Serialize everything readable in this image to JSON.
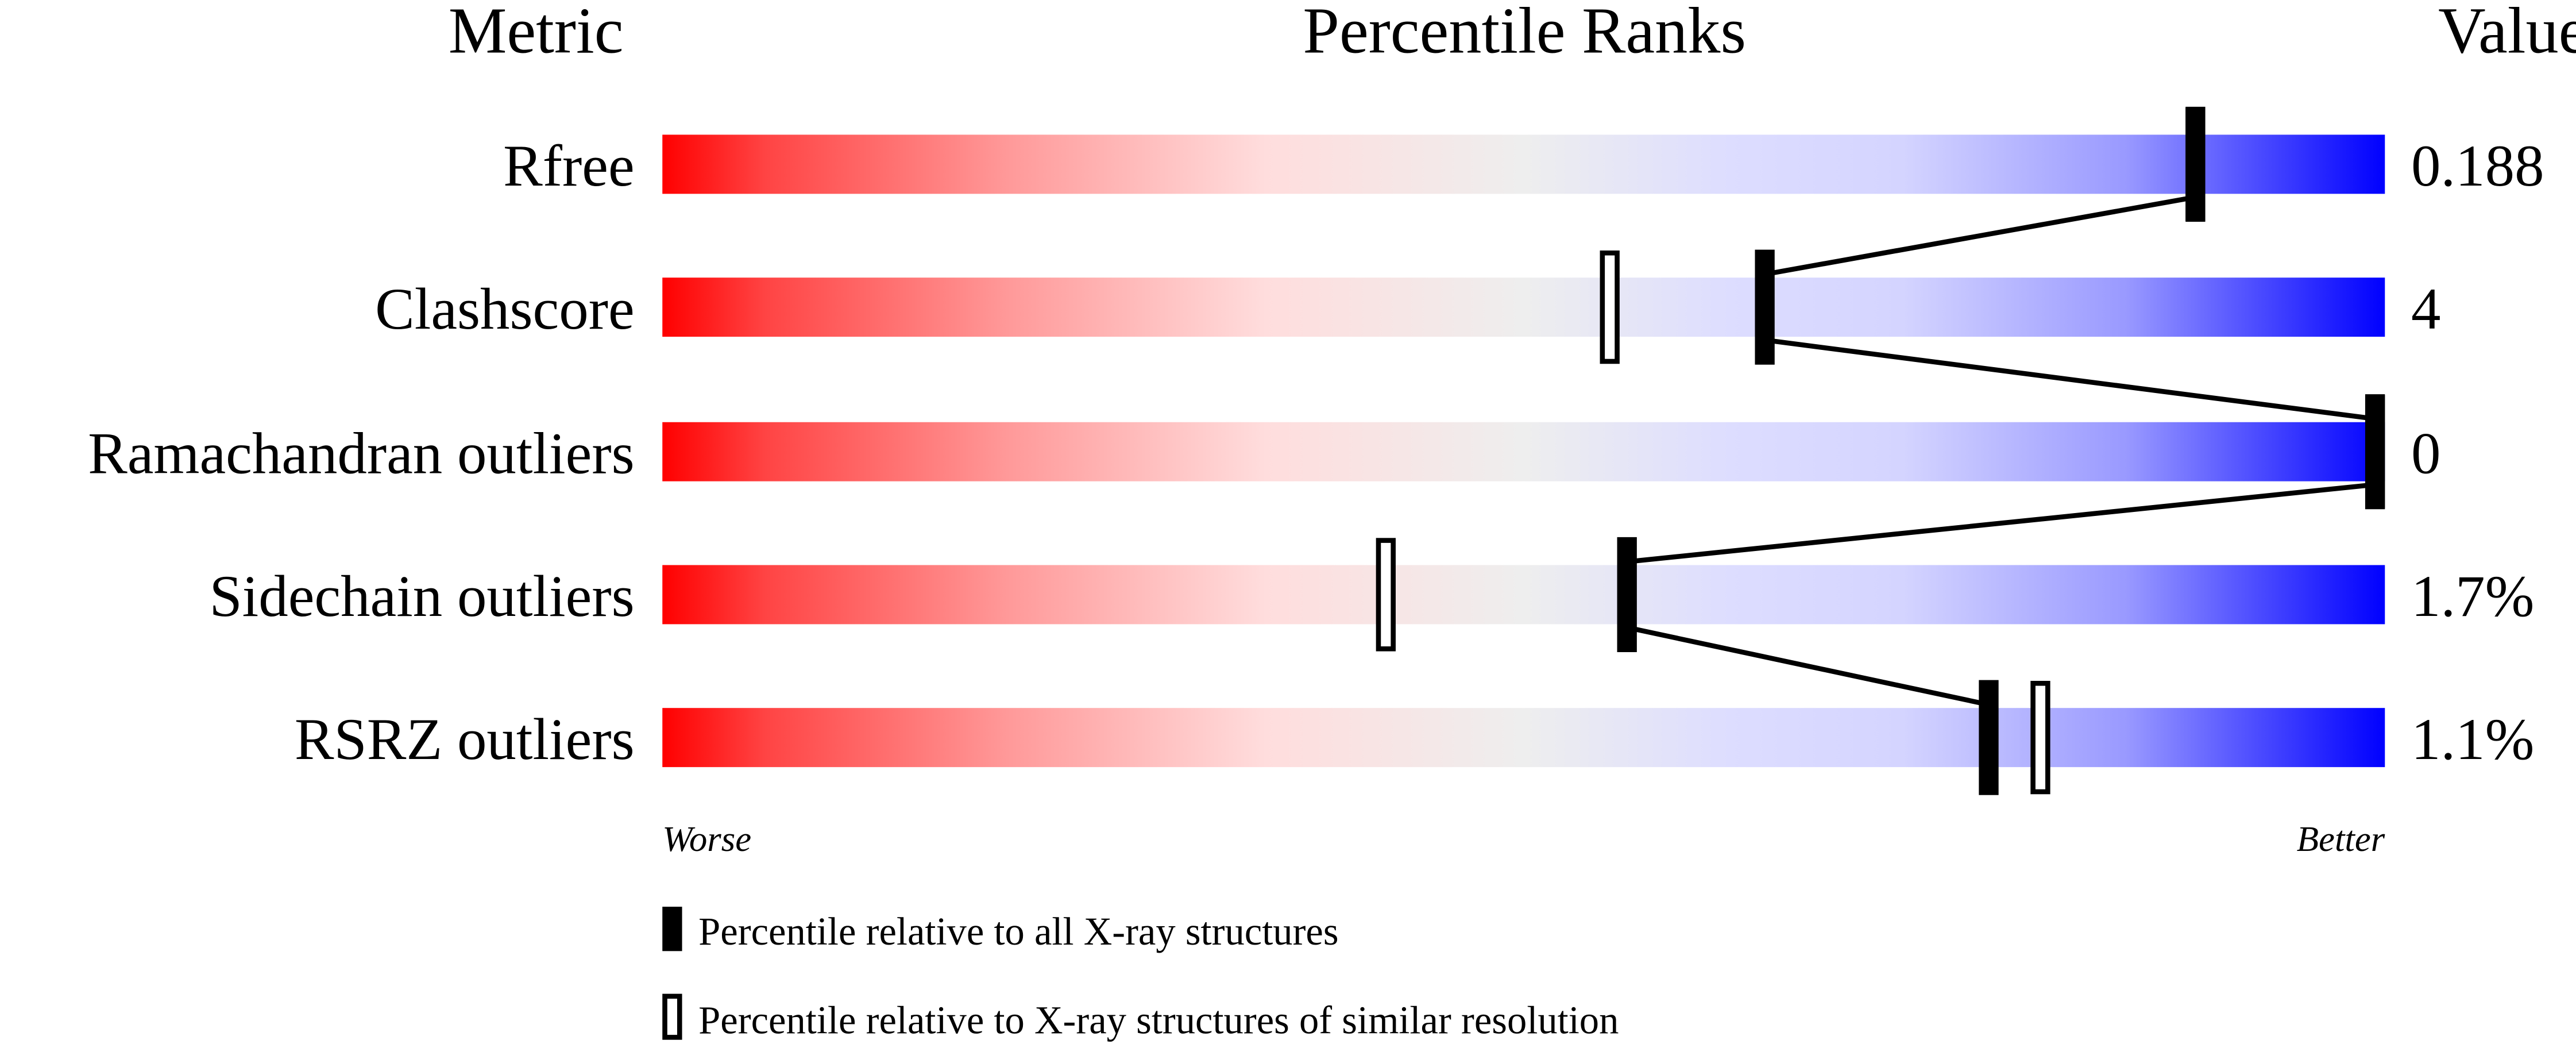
{
  "chart_data": {
    "type": "percentile-ranks",
    "headers": {
      "metric": "Metric",
      "percentile": "Percentile Ranks",
      "value": "Value"
    },
    "xlim": [
      0,
      100
    ],
    "axis_labels": {
      "left": "Worse",
      "right": "Better"
    },
    "metrics": [
      {
        "label": "Rfree",
        "value": "0.188",
        "percentile_all": 89,
        "percentile_similar": 89
      },
      {
        "label": "Clashscore",
        "value": "4",
        "percentile_all": 64,
        "percentile_similar": 55
      },
      {
        "label": "Ramachandran outliers",
        "value": "0",
        "percentile_all": 100,
        "percentile_similar": 100
      },
      {
        "label": "Sidechain outliers",
        "value": "1.7%",
        "percentile_all": 56,
        "percentile_similar": 42
      },
      {
        "label": "RSRZ outliers",
        "value": "1.1%",
        "percentile_all": 77,
        "percentile_similar": 80
      }
    ],
    "legend": [
      {
        "marker": "filled",
        "label": "Percentile relative to all X-ray structures"
      },
      {
        "marker": "hollow",
        "label": "Percentile relative to X-ray structures of similar resolution"
      }
    ],
    "colors": {
      "worse": "#ff0000",
      "middle": "#eeeeee",
      "better": "#0000ff",
      "marker": "#000000"
    }
  }
}
